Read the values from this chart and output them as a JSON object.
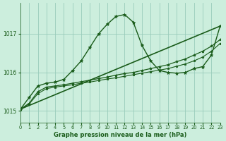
{
  "background_color": "#cceedd",
  "grid_color": "#99ccbb",
  "line_color": "#1a5c1a",
  "xlabel": "Graphe pression niveau de la mer (hPa)",
  "xlim": [
    0,
    23
  ],
  "ylim": [
    1014.7,
    1017.8
  ],
  "yticks": [
    1015,
    1016,
    1017
  ],
  "xticks": [
    0,
    1,
    2,
    3,
    4,
    5,
    6,
    7,
    8,
    9,
    10,
    11,
    12,
    13,
    14,
    15,
    16,
    17,
    18,
    19,
    20,
    21,
    22,
    23
  ],
  "series": [
    {
      "x": [
        0,
        1,
        2,
        3,
        4,
        5,
        6,
        7,
        8,
        9,
        10,
        11,
        12,
        13,
        14,
        15,
        16,
        17,
        18,
        19,
        20,
        21,
        22,
        23
      ],
      "y": [
        1015.05,
        1015.35,
        1015.65,
        1015.72,
        1015.75,
        1015.82,
        1016.05,
        1016.3,
        1016.65,
        1017.0,
        1017.25,
        1017.45,
        1017.5,
        1017.3,
        1016.7,
        1016.3,
        1016.05,
        1016.0,
        1015.98,
        1016.0,
        1016.1,
        1016.15,
        1016.45,
        1017.2
      ],
      "marker": "*",
      "linewidth": 1.0,
      "markersize": 3.5,
      "linestyle": "-"
    },
    {
      "x": [
        0,
        23
      ],
      "y": [
        1015.05,
        1017.2
      ],
      "marker": null,
      "linewidth": 1.2,
      "markersize": 0,
      "linestyle": "-"
    },
    {
      "x": [
        0,
        1,
        2,
        3,
        4,
        5,
        6,
        7,
        8,
        9,
        10,
        11,
        12,
        13,
        14,
        15,
        16,
        17,
        18,
        19,
        20,
        21,
        22,
        23
      ],
      "y": [
        1015.05,
        1015.2,
        1015.5,
        1015.62,
        1015.65,
        1015.68,
        1015.72,
        1015.76,
        1015.8,
        1015.84,
        1015.88,
        1015.93,
        1015.97,
        1016.0,
        1016.05,
        1016.1,
        1016.15,
        1016.2,
        1016.28,
        1016.35,
        1016.45,
        1016.55,
        1016.68,
        1016.85
      ],
      "marker": "*",
      "linewidth": 0.9,
      "markersize": 2.8,
      "linestyle": "-"
    },
    {
      "x": [
        0,
        1,
        2,
        3,
        4,
        5,
        6,
        7,
        8,
        9,
        10,
        11,
        12,
        13,
        14,
        15,
        16,
        17,
        18,
        19,
        20,
        21,
        22,
        23
      ],
      "y": [
        1015.05,
        1015.18,
        1015.45,
        1015.58,
        1015.62,
        1015.65,
        1015.68,
        1015.72,
        1015.75,
        1015.79,
        1015.83,
        1015.86,
        1015.9,
        1015.94,
        1015.98,
        1016.02,
        1016.06,
        1016.1,
        1016.16,
        1016.22,
        1016.3,
        1016.4,
        1016.55,
        1016.75
      ],
      "marker": "*",
      "linewidth": 0.8,
      "markersize": 2.5,
      "linestyle": "-"
    }
  ]
}
